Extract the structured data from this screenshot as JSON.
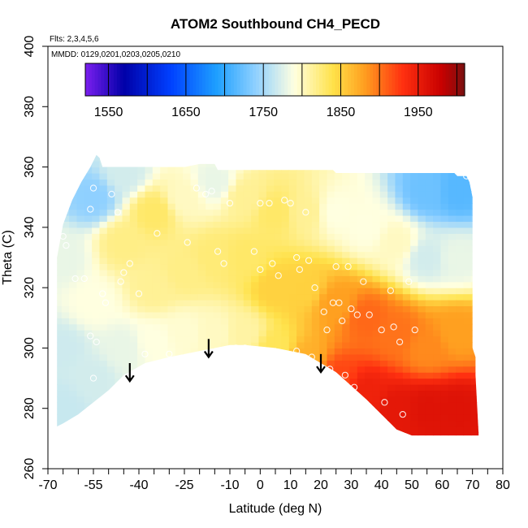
{
  "chart_data": {
    "type": "heatmap",
    "title": "ATOM2 Southbound CH4_PECD",
    "flights_note": "Flts: 2,3,4,5,6",
    "dates_note": "MMDD: 0129,0201,0203,0205,0210",
    "xlabel": "Latitude (deg N)",
    "ylabel": "Theta (C)",
    "xlim": [
      -70,
      80
    ],
    "ylim": [
      260,
      400
    ],
    "x_ticks": [
      -70,
      -55,
      -40,
      -25,
      -10,
      0,
      10,
      20,
      30,
      40,
      50,
      60,
      70,
      80
    ],
    "x_minor_ticks": [
      -65,
      -60,
      -50,
      -45,
      -35,
      -30,
      -20,
      -15,
      -5,
      5,
      15,
      25,
      35,
      45,
      55,
      65,
      75
    ],
    "y_ticks": [
      260,
      280,
      300,
      320,
      340,
      360,
      380,
      400
    ],
    "colorbar": {
      "range": [
        1520,
        2010
      ],
      "tick_labels": [
        1550,
        1650,
        1750,
        1850,
        1950
      ],
      "divisions": [
        1550,
        1600,
        1650,
        1700,
        1750,
        1800,
        1850,
        1900,
        1950,
        2000
      ],
      "colors": [
        "#7b1fef",
        "#0000a8",
        "#0040ff",
        "#1ea0ff",
        "#8fd0ff",
        "#ffffe0",
        "#ffe24a",
        "#ffa020",
        "#ff3010",
        "#c80000",
        "#7a1010"
      ],
      "color_stops": [
        1520,
        1570,
        1630,
        1690,
        1740,
        1790,
        1840,
        1880,
        1930,
        1980,
        2010
      ]
    },
    "field_knots": [
      {
        "x": -65,
        "y": 280,
        "v": 1765
      },
      {
        "x": -65,
        "y": 300,
        "v": 1768
      },
      {
        "x": -65,
        "y": 330,
        "v": 1780
      },
      {
        "x": -55,
        "y": 290,
        "v": 1770
      },
      {
        "x": -55,
        "y": 315,
        "v": 1790
      },
      {
        "x": -55,
        "y": 350,
        "v": 1740
      },
      {
        "x": -45,
        "y": 300,
        "v": 1780
      },
      {
        "x": -45,
        "y": 335,
        "v": 1820
      },
      {
        "x": -45,
        "y": 358,
        "v": 1770
      },
      {
        "x": -35,
        "y": 302,
        "v": 1790
      },
      {
        "x": -35,
        "y": 320,
        "v": 1815
      },
      {
        "x": -35,
        "y": 345,
        "v": 1830
      },
      {
        "x": -25,
        "y": 305,
        "v": 1795
      },
      {
        "x": -25,
        "y": 325,
        "v": 1820
      },
      {
        "x": -25,
        "y": 350,
        "v": 1800
      },
      {
        "x": -15,
        "y": 305,
        "v": 1800
      },
      {
        "x": -15,
        "y": 330,
        "v": 1825
      },
      {
        "x": -15,
        "y": 355,
        "v": 1780
      },
      {
        "x": -5,
        "y": 305,
        "v": 1810
      },
      {
        "x": -5,
        "y": 330,
        "v": 1830
      },
      {
        "x": -5,
        "y": 350,
        "v": 1815
      },
      {
        "x": 5,
        "y": 300,
        "v": 1835
      },
      {
        "x": 5,
        "y": 320,
        "v": 1850
      },
      {
        "x": 5,
        "y": 345,
        "v": 1830
      },
      {
        "x": 15,
        "y": 296,
        "v": 1870
      },
      {
        "x": 15,
        "y": 320,
        "v": 1850
      },
      {
        "x": 15,
        "y": 345,
        "v": 1815
      },
      {
        "x": 25,
        "y": 290,
        "v": 1920
      },
      {
        "x": 25,
        "y": 315,
        "v": 1880
      },
      {
        "x": 25,
        "y": 345,
        "v": 1790
      },
      {
        "x": 35,
        "y": 285,
        "v": 1945
      },
      {
        "x": 35,
        "y": 310,
        "v": 1905
      },
      {
        "x": 35,
        "y": 340,
        "v": 1790
      },
      {
        "x": 45,
        "y": 280,
        "v": 1955
      },
      {
        "x": 45,
        "y": 305,
        "v": 1900
      },
      {
        "x": 45,
        "y": 335,
        "v": 1800
      },
      {
        "x": 55,
        "y": 280,
        "v": 1960
      },
      {
        "x": 55,
        "y": 300,
        "v": 1890
      },
      {
        "x": 55,
        "y": 330,
        "v": 1770
      },
      {
        "x": 55,
        "y": 352,
        "v": 1725
      },
      {
        "x": 65,
        "y": 280,
        "v": 1960
      },
      {
        "x": 65,
        "y": 305,
        "v": 1880
      },
      {
        "x": 65,
        "y": 330,
        "v": 1780
      },
      {
        "x": 65,
        "y": 352,
        "v": 1715
      }
    ],
    "sample_points": [
      {
        "x": -65,
        "y": 337
      },
      {
        "x": -64,
        "y": 334
      },
      {
        "x": -61,
        "y": 323
      },
      {
        "x": -58,
        "y": 323
      },
      {
        "x": -56,
        "y": 346
      },
      {
        "x": -55,
        "y": 353
      },
      {
        "x": -52,
        "y": 318
      },
      {
        "x": -51,
        "y": 315
      },
      {
        "x": -55,
        "y": 290
      },
      {
        "x": -54,
        "y": 302
      },
      {
        "x": -56,
        "y": 304
      },
      {
        "x": -49,
        "y": 351
      },
      {
        "x": -47,
        "y": 345
      },
      {
        "x": -45,
        "y": 325
      },
      {
        "x": -46,
        "y": 322
      },
      {
        "x": -43,
        "y": 328
      },
      {
        "x": -40,
        "y": 318
      },
      {
        "x": -38,
        "y": 298
      },
      {
        "x": -34,
        "y": 338
      },
      {
        "x": -30,
        "y": 298
      },
      {
        "x": -24,
        "y": 335
      },
      {
        "x": -21,
        "y": 353
      },
      {
        "x": -18,
        "y": 351
      },
      {
        "x": -16,
        "y": 352
      },
      {
        "x": -14,
        "y": 332
      },
      {
        "x": -12,
        "y": 328
      },
      {
        "x": -10,
        "y": 348
      },
      {
        "x": -8,
        "y": 300
      },
      {
        "x": -5,
        "y": 300
      },
      {
        "x": 0,
        "y": 348
      },
      {
        "x": 3,
        "y": 348
      },
      {
        "x": -2,
        "y": 332
      },
      {
        "x": 0,
        "y": 326
      },
      {
        "x": 4,
        "y": 328
      },
      {
        "x": 6,
        "y": 324
      },
      {
        "x": 8,
        "y": 349
      },
      {
        "x": 10,
        "y": 348
      },
      {
        "x": 12,
        "y": 330
      },
      {
        "x": 13,
        "y": 326
      },
      {
        "x": 15,
        "y": 345
      },
      {
        "x": 16,
        "y": 329
      },
      {
        "x": 18,
        "y": 320
      },
      {
        "x": 12,
        "y": 299
      },
      {
        "x": 17,
        "y": 297
      },
      {
        "x": 21,
        "y": 312
      },
      {
        "x": 22,
        "y": 306
      },
      {
        "x": 23,
        "y": 293
      },
      {
        "x": 24,
        "y": 315
      },
      {
        "x": 25,
        "y": 327
      },
      {
        "x": 26,
        "y": 315
      },
      {
        "x": 27,
        "y": 309
      },
      {
        "x": 28,
        "y": 291
      },
      {
        "x": 29,
        "y": 327
      },
      {
        "x": 30,
        "y": 313
      },
      {
        "x": 31,
        "y": 287
      },
      {
        "x": 32,
        "y": 311
      },
      {
        "x": 34,
        "y": 322
      },
      {
        "x": 36,
        "y": 311
      },
      {
        "x": 40,
        "y": 306
      },
      {
        "x": 41,
        "y": 282
      },
      {
        "x": 43,
        "y": 319
      },
      {
        "x": 44,
        "y": 307
      },
      {
        "x": 46,
        "y": 302
      },
      {
        "x": 47,
        "y": 278
      },
      {
        "x": 49,
        "y": 322
      },
      {
        "x": 51,
        "y": 306
      },
      {
        "x": 68,
        "y": 357
      },
      {
        "x": 72,
        "y": 300
      }
    ],
    "arrows": [
      {
        "x": -43,
        "y_top": 295,
        "y_tip": 289
      },
      {
        "x": -17,
        "y_top": 303,
        "y_tip": 297
      },
      {
        "x": 20,
        "y_top": 298,
        "y_tip": 292
      }
    ]
  }
}
